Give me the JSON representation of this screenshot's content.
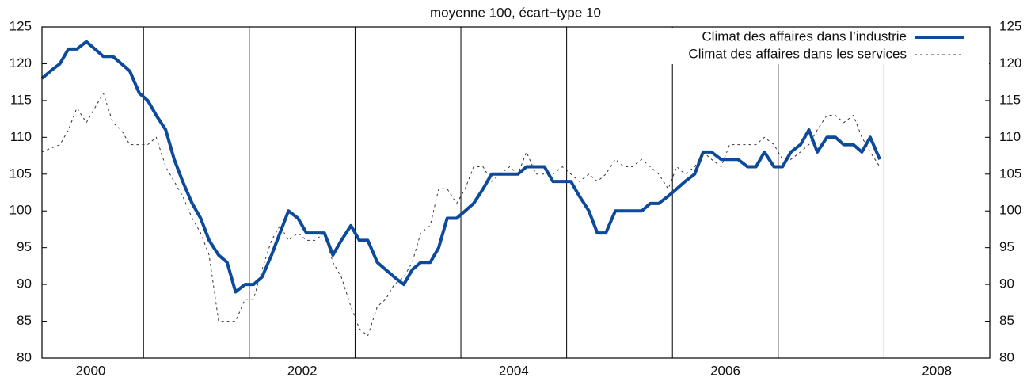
{
  "chart_data": {
    "type": "line",
    "title": "moyenne 100, écart−type 10",
    "x": [
      2000.04,
      2000.12,
      2000.21,
      2000.29,
      2000.37,
      2000.46,
      2000.54,
      2000.62,
      2000.71,
      2000.79,
      2000.87,
      2000.96,
      2001.04,
      2001.12,
      2001.21,
      2001.29,
      2001.37,
      2001.46,
      2001.54,
      2001.62,
      2001.71,
      2001.79,
      2001.87,
      2001.96,
      2002.04,
      2002.12,
      2002.21,
      2002.29,
      2002.37,
      2002.46,
      2002.54,
      2002.62,
      2002.71,
      2002.79,
      2002.87,
      2002.96,
      2003.04,
      2003.12,
      2003.21,
      2003.29,
      2003.37,
      2003.46,
      2003.54,
      2003.62,
      2003.71,
      2003.79,
      2003.87,
      2003.96,
      2004.04,
      2004.12,
      2004.21,
      2004.29,
      2004.37,
      2004.46,
      2004.54,
      2004.62,
      2004.71,
      2004.79,
      2004.87,
      2004.96,
      2005.04,
      2005.12,
      2005.21,
      2005.29,
      2005.37,
      2005.46,
      2005.54,
      2005.62,
      2005.71,
      2005.79,
      2005.87,
      2005.96,
      2006.04,
      2006.12,
      2006.21,
      2006.29,
      2006.37,
      2006.46,
      2006.54,
      2006.62,
      2006.71,
      2006.79,
      2006.87,
      2006.96,
      2007.04,
      2007.12,
      2007.21,
      2007.29,
      2007.37,
      2007.46,
      2007.54,
      2007.62,
      2007.71,
      2007.79,
      2007.87,
      2007.96
    ],
    "series": [
      {
        "name": "Climat des affaires dans l’industrie",
        "color": "#0d4a9a",
        "style": "solid",
        "values": [
          118,
          119,
          120,
          122,
          122,
          123,
          122,
          121,
          121,
          120,
          119,
          116,
          115,
          113,
          111,
          107,
          104,
          101,
          99,
          96,
          94,
          93,
          89,
          90,
          90,
          91,
          94,
          97,
          100,
          99,
          97,
          97,
          97,
          94,
          96,
          98,
          96,
          96,
          93,
          92,
          91,
          90,
          92,
          93,
          93,
          95,
          99,
          99,
          100,
          101,
          103,
          105,
          105,
          105,
          105,
          106,
          106,
          106,
          104,
          104,
          104,
          102,
          100,
          97,
          97,
          100,
          100,
          100,
          100,
          101,
          101,
          102,
          103,
          104,
          105,
          108,
          108,
          107,
          107,
          107,
          106,
          106,
          108,
          106,
          106,
          108,
          109,
          111,
          108,
          110,
          110,
          109,
          109,
          108,
          110,
          107
        ]
      },
      {
        "name": "Climat des affaires dans les services",
        "color": "#333333",
        "style": "dashed",
        "values": [
          108,
          108.5,
          109,
          111,
          114,
          112,
          114,
          116,
          112,
          111,
          109,
          109,
          109,
          110,
          106,
          104,
          102,
          99,
          97,
          94,
          85,
          85,
          85,
          88,
          88,
          92,
          96,
          98,
          96,
          97,
          96,
          96,
          97,
          93,
          91,
          87,
          84,
          83,
          87,
          88,
          90,
          91,
          93,
          97,
          98,
          103,
          103,
          101,
          103,
          106,
          106,
          104,
          105,
          106,
          105,
          108,
          105,
          105,
          105,
          106,
          105,
          104,
          105,
          104,
          105,
          107,
          106,
          106,
          107,
          106,
          105,
          103,
          106,
          105,
          106,
          108,
          107,
          106,
          109,
          109,
          109,
          109,
          110,
          109,
          107,
          107,
          108,
          109,
          111,
          113,
          113,
          112,
          113,
          110,
          108,
          106
        ]
      }
    ],
    "xlim": [
      2000.04,
      2009
    ],
    "xticks": [
      {
        "value": 2000.5,
        "label": "2000"
      },
      {
        "value": 2002.5,
        "label": "2002"
      },
      {
        "value": 2004.5,
        "label": "2004"
      },
      {
        "value": 2006.5,
        "label": "2006"
      },
      {
        "value": 2008.5,
        "label": "2008"
      }
    ],
    "xgrid": [
      2001,
      2002,
      2003,
      2004,
      2005,
      2006,
      2007,
      2008
    ],
    "ylim": [
      80,
      125
    ],
    "yticks": [
      80,
      85,
      90,
      95,
      100,
      105,
      110,
      115,
      120,
      125
    ],
    "legend": "upper right"
  }
}
